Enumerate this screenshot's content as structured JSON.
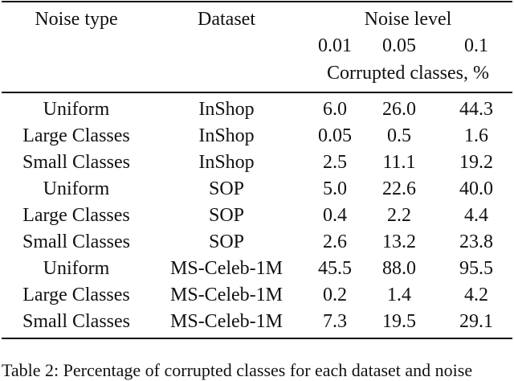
{
  "table": {
    "header": {
      "noise_type": "Noise type",
      "dataset": "Dataset",
      "noise_level": "Noise level",
      "levels": [
        "0.01",
        "0.05",
        "0.1"
      ],
      "unit": "Corrupted classes, %"
    },
    "rows": [
      [
        "Uniform",
        "InShop",
        "6.0",
        "26.0",
        "44.3"
      ],
      [
        "Large Classes",
        "InShop",
        "0.05",
        "0.5",
        "1.6"
      ],
      [
        "Small Classes",
        "InShop",
        "2.5",
        "11.1",
        "19.2"
      ],
      [
        "Uniform",
        "SOP",
        "5.0",
        "22.6",
        "40.0"
      ],
      [
        "Large Classes",
        "SOP",
        "0.4",
        "2.2",
        "4.4"
      ],
      [
        "Small Classes",
        "SOP",
        "2.6",
        "13.2",
        "23.8"
      ],
      [
        "Uniform",
        "MS-Celeb-1M",
        "45.5",
        "88.0",
        "95.5"
      ],
      [
        "Large Classes",
        "MS-Celeb-1M",
        "0.2",
        "1.4",
        "4.2"
      ],
      [
        "Small Classes",
        "MS-Celeb-1M",
        "7.3",
        "19.5",
        "29.1"
      ]
    ],
    "caption": "Table 2: Percentage of corrupted classes for each dataset and noise"
  }
}
